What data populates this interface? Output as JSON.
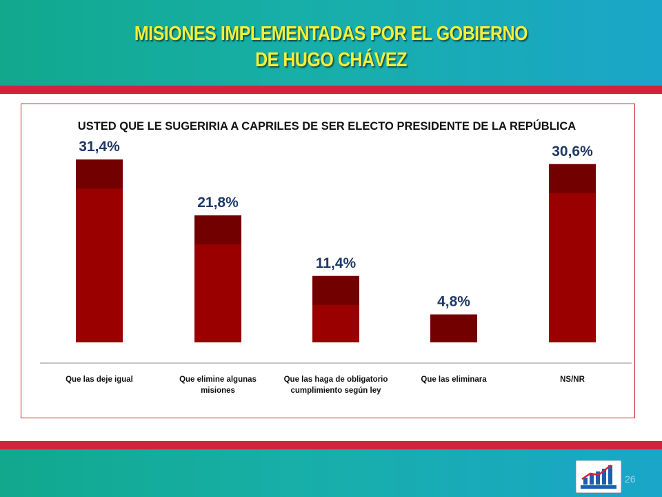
{
  "slide": {
    "title_line1": "MISIONES IMPLEMENTADAS POR EL GOBIERNO",
    "title_line2": "DE HUGO CHÁVEZ",
    "page_number": "26"
  },
  "colors": {
    "bar_main": "#9a0000",
    "bar_top": "#720000",
    "value_label": "#1f3a66",
    "title_yellow": "#f4ee3a",
    "accent_red": "#d3233c",
    "band_teal": "#17afa8"
  },
  "chart_data": {
    "type": "bar",
    "title": "USTED QUE LE SUGERIRIA A CAPRILES DE SER ELECTO PRESIDENTE DE LA REPÚBLICA",
    "categories": [
      [
        "Que las deje igual"
      ],
      [
        "Que elimine algunas",
        "misiones"
      ],
      [
        "Que las haga de obligatorio",
        "cumplimiento según ley"
      ],
      [
        "Que las eliminara"
      ],
      [
        "NS/NR"
      ]
    ],
    "values": [
      31.4,
      21.8,
      11.4,
      4.8,
      30.6
    ],
    "value_labels": [
      "31,4%",
      "21,8%",
      "11,4%",
      "4,8%",
      "30,6%"
    ],
    "unit": "%",
    "ylim": [
      0,
      32
    ],
    "grid": false,
    "legend": "none"
  }
}
